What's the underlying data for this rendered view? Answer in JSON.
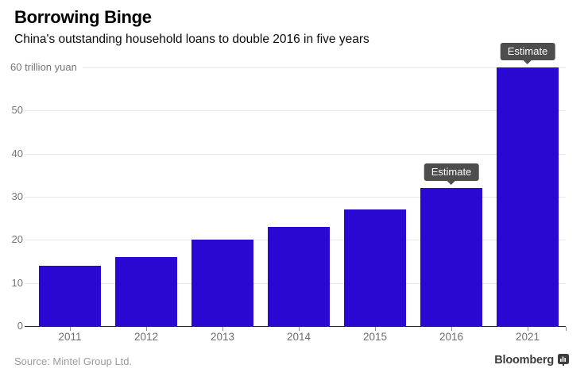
{
  "header": {
    "title": "Borrowing Binge",
    "subtitle": "China's outstanding household loans to double 2016 in five years"
  },
  "footer": {
    "source": "Source: Mintel Group Ltd.",
    "brand": "Bloomberg"
  },
  "colors": {
    "bar": "#2a08d2",
    "tooltip_bg": "#4d4d4d",
    "tooltip_text": "#ffffff",
    "grid": "#e9e9e9",
    "axis": "#2b2b2b",
    "axis_label": "#757575",
    "x_label": "#6e6e6e"
  },
  "chart_data": {
    "type": "bar",
    "title": "Borrowing Binge",
    "subtitle": "China's outstanding household loans to double 2016 in five years",
    "categories": [
      "2011",
      "2012",
      "2013",
      "2014",
      "2015",
      "2016",
      "2021"
    ],
    "values": [
      14,
      16,
      20,
      23,
      27,
      32,
      60
    ],
    "estimate_flags": [
      false,
      false,
      false,
      false,
      false,
      true,
      true
    ],
    "estimate_label": "Estimate",
    "xlabel": "",
    "ylabel": "trillion yuan",
    "top_axis_label": "60 trillion yuan",
    "yticks": [
      0,
      10,
      20,
      30,
      40,
      50,
      60
    ],
    "ylim": [
      0,
      60
    ],
    "grid": true,
    "legend": "none",
    "source": "Source: Mintel Group Ltd."
  }
}
